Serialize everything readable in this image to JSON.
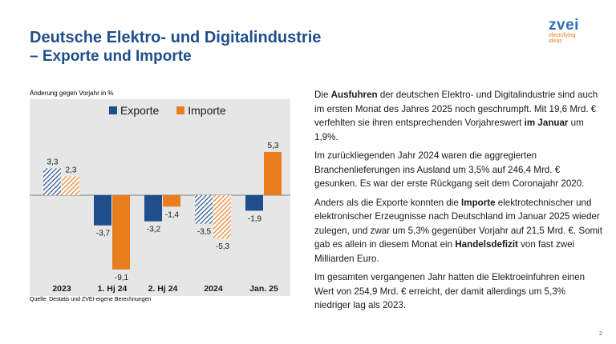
{
  "header": {
    "title_line1": "Deutsche Elektro- und Digitalindustrie",
    "title_line2": "– Exporte und Importe"
  },
  "logo": {
    "word": "zvei",
    "tag_line1": "electrifying",
    "tag_line2": "ideas"
  },
  "chart_data": {
    "type": "bar",
    "ylabel": "Änderung gegen Vorjahr in %",
    "categories": [
      "2023",
      "1. Hj 24",
      "2. Hj 24",
      "2024",
      "Jan. 25"
    ],
    "series": [
      {
        "name": "Exporte",
        "values": [
          3.3,
          -3.7,
          -3.2,
          -3.5,
          -1.9
        ],
        "color": "#1f4e8c"
      },
      {
        "name": "Importe",
        "values": [
          2.3,
          -9.1,
          -1.4,
          -5.3,
          5.3
        ],
        "color": "#e87d1e"
      }
    ],
    "labels": {
      "Exporte": [
        "3,3",
        "-3,7",
        "-3,2",
        "-3,5",
        "-1,9"
      ],
      "Importe": [
        "2,3",
        "-9,1",
        "-1,4",
        "-5,3",
        "5,3"
      ]
    },
    "hatched_categories": [
      "2023",
      "2024"
    ],
    "legend_placement": "top",
    "grid": false
  },
  "source": "Quelle: Destatis und ZVEI-eigene Berechnungen",
  "text": {
    "p1": {
      "a": "Die ",
      "b1": "Ausfuhren",
      "c": " der deutschen Elektro- und Digitalindustrie sind auch im ersten Monat des Jahres 2025 noch geschrumpft. Mit 19,6 Mrd. € verfehlten sie ihren entsprechenden Vorjahreswert ",
      "b2": "im Januar",
      "d": " um 1,9%."
    },
    "p2": "Im zurückliegenden Jahr 2024 waren die aggregierten Branchenlieferungen ins Ausland um 3,5% auf 246,4 Mrd. € gesunken. Es war der erste Rückgang seit dem Coronajahr 2020.",
    "p3": {
      "a": "Anders als die Exporte konnten die ",
      "b1": "Importe",
      "c": " elektrotechnischer und elektronischer Erzeugnisse nach Deutschland im Januar 2025 wieder zulegen, und zwar um 5,3% gegenüber Vorjahr auf 21,5 Mrd. €. Somit gab es allein in diesem Monat ein ",
      "b2": "Handelsdefizit",
      "d": " von fast zwei Milliarden Euro."
    },
    "p4": "Im gesamten vergangenen Jahr hatten die Elektroeinfuhren einen Wert von 254,9 Mrd. € erreicht, der damit allerdings um 5,3% niedriger lag als 2023."
  },
  "page_number": "2"
}
